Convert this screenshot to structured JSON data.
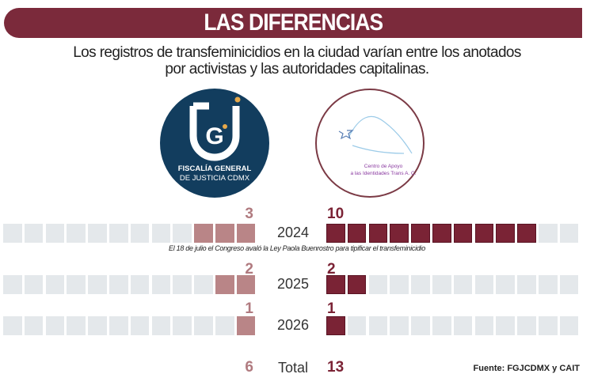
{
  "title": "LAS DIFERENCIAS",
  "subtitle_line1": "Los registros de transfeminicidios en la ciudad varían entre los anotados",
  "subtitle_line2": "por activistas y las autoridades capitalinas.",
  "logos": {
    "left": {
      "line1": "FISCALÍA GENERAL",
      "line2": "DE JUSTICIA CDMX",
      "mark": "FGJ"
    },
    "right": {
      "line1": "Centro de Apoyo",
      "line2": "a las Identidades Trans A. C."
    }
  },
  "colors": {
    "title_bar": "#7b2a3b",
    "left_fill": "#b98587",
    "right_fill": "#7a2335",
    "empty": "#e4e8eb"
  },
  "chart_data": {
    "type": "bar",
    "categories": [
      "2024",
      "2025",
      "2026"
    ],
    "series": [
      {
        "source": "FGJCDMX",
        "values": [
          3,
          2,
          1
        ],
        "total": 6
      },
      {
        "source": "CAIT",
        "values": [
          10,
          2,
          1
        ],
        "total": 13
      }
    ],
    "max_squares": 12,
    "total_label": "Total",
    "annotation": "El 18 de julio el Congreso avaló la Ley Paola Buenrostro para tipificar el transfeminicidio",
    "source": "Fuente: FGJCDMX y CAIT"
  }
}
